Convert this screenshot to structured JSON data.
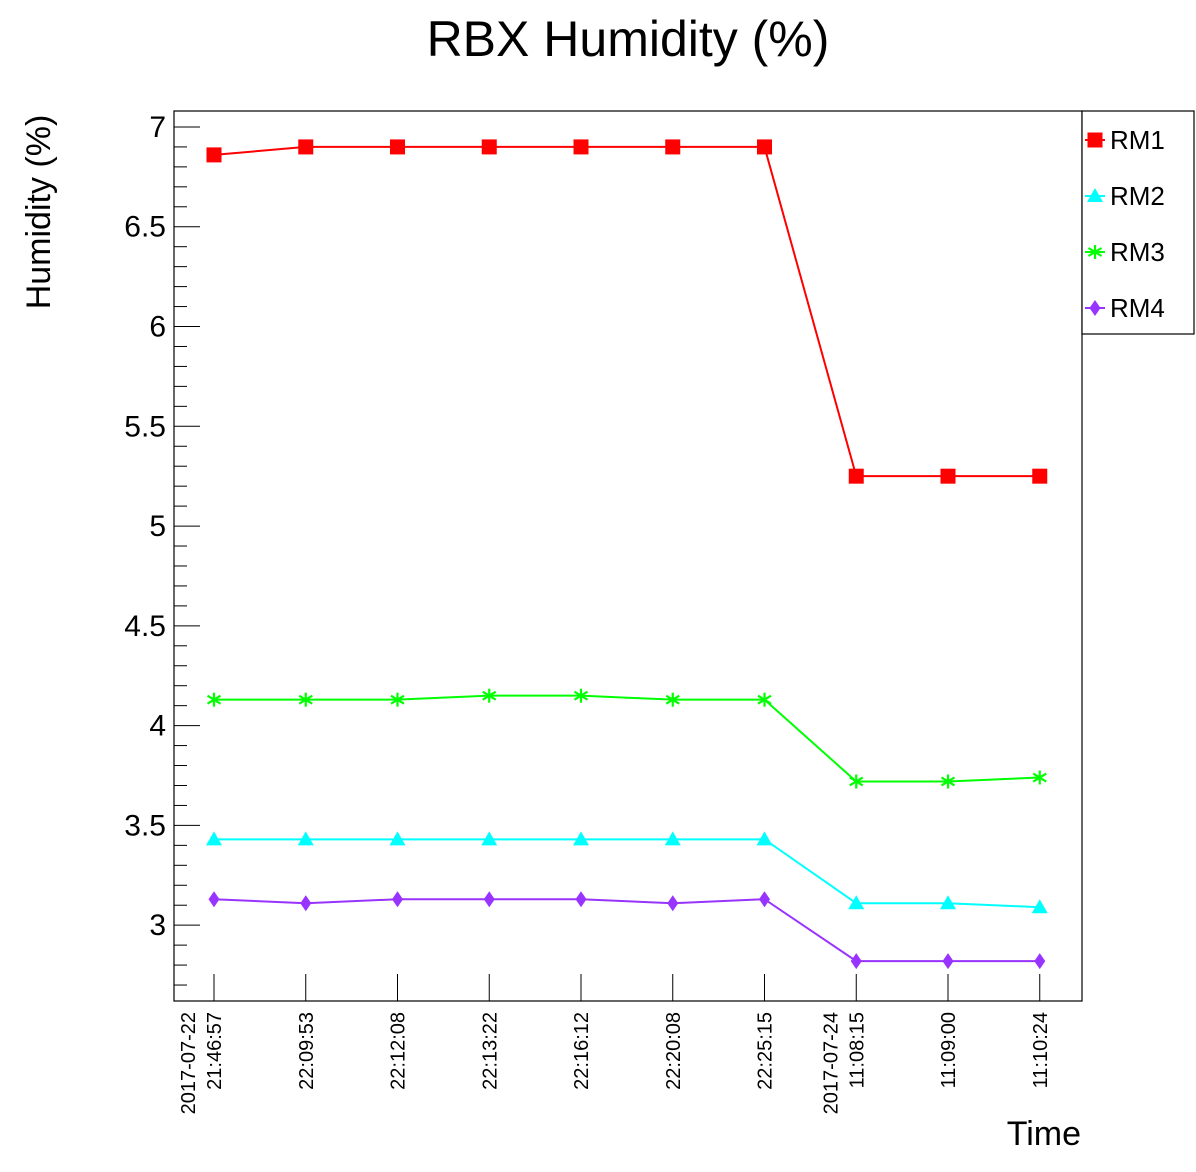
{
  "chart_data": {
    "type": "line",
    "title": "RBX Humidity (%)",
    "xlabel": "Time",
    "ylabel": "Humidity (%)",
    "x_tick_labels": [
      [
        "2017-07-22",
        "21:46:57"
      ],
      [
        "22:09:53"
      ],
      [
        "22:12:08"
      ],
      [
        "22:13:22"
      ],
      [
        "22:16:12"
      ],
      [
        "22:20:08"
      ],
      [
        "22:25:15"
      ],
      [
        "2017-07-24",
        "11:08:15"
      ],
      [
        "11:09:00"
      ],
      [
        "11:10:24"
      ]
    ],
    "y_ticks": [
      "3",
      "3.5",
      "4",
      "4.5",
      "5",
      "5.5",
      "6",
      "6.5",
      "7"
    ],
    "ylim": [
      2.62,
      7.08
    ],
    "grid": false,
    "legend_position": "top-right",
    "series": [
      {
        "name": "RM1",
        "color": "#ff0000",
        "marker": "square",
        "values": [
          6.86,
          6.9,
          6.9,
          6.9,
          6.9,
          6.9,
          6.9,
          5.25,
          5.25,
          5.25
        ]
      },
      {
        "name": "RM2",
        "color": "#00ffff",
        "marker": "triangle",
        "values": [
          3.43,
          3.43,
          3.43,
          3.43,
          3.43,
          3.43,
          3.43,
          3.11,
          3.11,
          3.09
        ]
      },
      {
        "name": "RM3",
        "color": "#00ff00",
        "marker": "star",
        "values": [
          4.13,
          4.13,
          4.13,
          4.15,
          4.15,
          4.13,
          4.13,
          3.72,
          3.72,
          3.74
        ]
      },
      {
        "name": "RM4",
        "color": "#9933ff",
        "marker": "diamond",
        "values": [
          3.13,
          3.11,
          3.13,
          3.13,
          3.13,
          3.11,
          3.13,
          2.82,
          2.82,
          2.82
        ]
      }
    ]
  }
}
